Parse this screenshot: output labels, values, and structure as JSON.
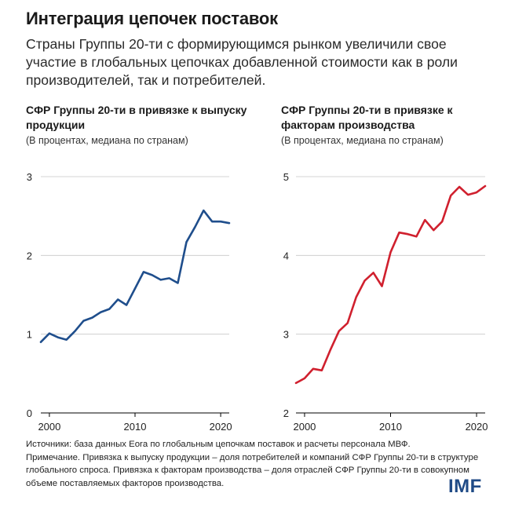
{
  "header": {
    "title": "Интеграция цепочек поставок",
    "subtitle": "Страны Группы 20-ти с формирующимся рынком увеличили свое участие в глобальных цепочках добавленной стоимости как в роли производителей, так и потребителей."
  },
  "chart_data": [
    {
      "type": "line",
      "title": "СФР Группы 20-ти в привязке к выпуску продукции",
      "subtitle": "(В процентах, медиана по странам)",
      "xlabel": "",
      "ylabel": "",
      "xlim": [
        1999,
        2021
      ],
      "ylim": [
        0,
        3
      ],
      "yticks": [
        0,
        1,
        2,
        3
      ],
      "xticks": [
        2000,
        2010,
        2020
      ],
      "grid": true,
      "color": "#1f4e8c",
      "series": [
        {
          "name": "Привязка к выпуску продукции",
          "x": [
            1999,
            2000,
            2001,
            2002,
            2003,
            2004,
            2005,
            2006,
            2007,
            2008,
            2009,
            2010,
            2011,
            2012,
            2013,
            2014,
            2015,
            2016,
            2017,
            2018,
            2019,
            2020,
            2021
          ],
          "values": [
            0.9,
            1.01,
            0.96,
            0.93,
            1.04,
            1.17,
            1.21,
            1.28,
            1.32,
            1.44,
            1.37,
            1.58,
            1.79,
            1.75,
            1.69,
            1.71,
            1.65,
            2.17,
            2.36,
            2.57,
            2.43,
            2.43,
            2.41
          ]
        }
      ]
    },
    {
      "type": "line",
      "title": "СФР Группы 20-ти в привязке к факторам производства",
      "subtitle": "(В процентах, медиана по странам)",
      "xlabel": "",
      "ylabel": "",
      "xlim": [
        1999,
        2021
      ],
      "ylim": [
        2,
        5
      ],
      "yticks": [
        2,
        3,
        4,
        5
      ],
      "xticks": [
        2000,
        2010,
        2020
      ],
      "grid": true,
      "color": "#d0202e",
      "series": [
        {
          "name": "Привязка к факторам производства",
          "x": [
            1999,
            2000,
            2001,
            2002,
            2003,
            2004,
            2005,
            2006,
            2007,
            2008,
            2009,
            2010,
            2011,
            2012,
            2013,
            2014,
            2015,
            2016,
            2017,
            2018,
            2019,
            2020,
            2021
          ],
          "values": [
            2.38,
            2.44,
            2.56,
            2.54,
            2.8,
            3.04,
            3.14,
            3.47,
            3.68,
            3.78,
            3.61,
            4.04,
            4.29,
            4.27,
            4.24,
            4.45,
            4.32,
            4.43,
            4.76,
            4.87,
            4.77,
            4.8,
            4.88
          ]
        }
      ]
    }
  ],
  "footnote": {
    "line1": "Источники: база данных Eora по глобальным цепочкам поставок и расчеты персонала МВФ.",
    "line2": "Примечание. Привязка к выпуску продукции – доля потребителей и компаний СФР Группы 20-ти в структуре глобального спроса. Привязка к факторам производства – доля отраслей СФР Группы 20-ти в совокупном объеме поставляемых факторов производства."
  },
  "logo": {
    "text": "IMF",
    "color": "#1f4a86"
  }
}
